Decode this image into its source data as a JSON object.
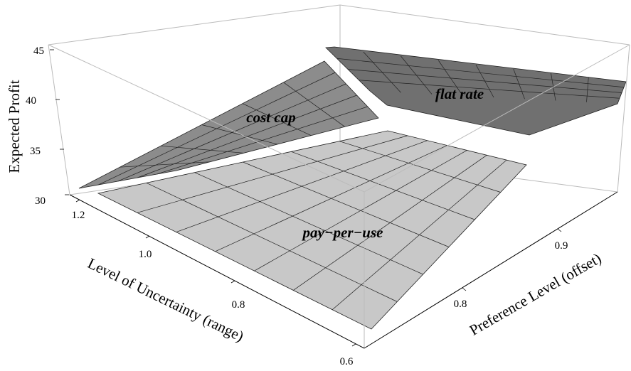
{
  "chart_data": {
    "type": "surface3d",
    "zlabel": "Expected Profit",
    "xlabel": "Level of Uncertainty (range)",
    "ylabel": "Preference Level (offset)",
    "zticks": [
      "30",
      "35",
      "40",
      "45"
    ],
    "xticks": [
      "1.2",
      "1.0",
      "0.8",
      "0.6"
    ],
    "yticks": [
      "0.8",
      "0.9"
    ],
    "xlim": [
      0.6,
      1.25
    ],
    "ylim": [
      0.72,
      1.0
    ],
    "zlim": [
      30,
      45.5
    ],
    "surfaces": [
      {
        "name": "pay-per-use",
        "color": "#c8c8c8",
        "corners": {
          "x_hi_y_lo": 29.5,
          "x_lo_y_lo": 28.5,
          "x_hi_y_hi": 34.5,
          "x_lo_y_hi": 30.5
        }
      },
      {
        "name": "cost cap",
        "color": "#8c8c8c",
        "corners": {
          "x_hi_y_lo": 30.8,
          "x_hi_y_hi": 43.2,
          "meet_y_lo": 37.0,
          "meet_y_hi": 38.0
        }
      },
      {
        "name": "flat rate",
        "color": "#707070",
        "corners": {
          "x_hi_y_lo": 44.0,
          "x_hi_y_hi": 45.5,
          "x_lo_y_lo": 36.2,
          "x_lo_y_hi": 38.4
        }
      }
    ],
    "grid": true,
    "legend": "none"
  },
  "labels": {
    "pay_per_use": "pay−per−use",
    "cost_cap": "cost cap",
    "flat_rate": "flat rate"
  },
  "colors": {
    "box_edge": "#bbbbbb",
    "axis_edge": "#000000",
    "mesh": "#222222"
  }
}
